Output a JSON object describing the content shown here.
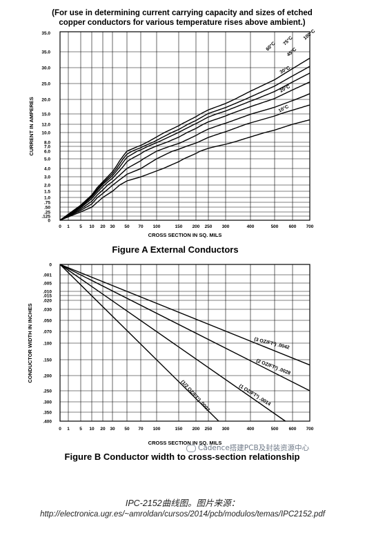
{
  "header": {
    "line1": "(For use in determining current carrying capacity and sizes of etched",
    "line2": "copper conductors for various temperature rises above ambient.)"
  },
  "chart_data": [
    {
      "type": "line",
      "title": "Figure A   External Conductors",
      "xlabel": "CROSS SECTION IN SQ. MILS",
      "ylabel": "CURRENT IN AMPERES",
      "xlim": [
        0,
        700
      ],
      "ylim": [
        0,
        35
      ],
      "grid": true,
      "x_ticks": [
        "0",
        "1",
        "5",
        "10",
        "20",
        "30",
        "50",
        "70",
        "100",
        "150",
        "200",
        "250",
        "300",
        "400",
        "500",
        "600",
        "700"
      ],
      "y_ticks": [
        "0",
        ".125",
        ".25",
        ".50",
        ".75",
        "1.0",
        "1.5",
        "2.0",
        "3.0",
        "4.0",
        "5.0",
        "6.0",
        "7.0",
        "8.0",
        "10.0",
        "12.0",
        "15.0",
        "20.0",
        "25.0",
        "30.0",
        "35.0"
      ],
      "series": [
        {
          "name": "10°C",
          "x": [
            0,
            50,
            100,
            200,
            300,
            400,
            500,
            600,
            700
          ],
          "y": [
            0,
            2.5,
            3.7,
            5.7,
            7.5,
            9.1,
            10.6,
            12.0,
            13.3
          ]
        },
        {
          "name": "20°C",
          "x": [
            0,
            50,
            100,
            200,
            300,
            400,
            500,
            600,
            700
          ],
          "y": [
            0,
            3.3,
            5.0,
            7.8,
            10.2,
            12.4,
            14.4,
            16.3,
            18.1
          ]
        },
        {
          "name": "30°C",
          "x": [
            0,
            50,
            100,
            200,
            300,
            400,
            500,
            600,
            700
          ],
          "y": [
            0,
            4.0,
            6.0,
            9.4,
            12.3,
            14.9,
            17.3,
            19.6,
            21.8
          ]
        },
        {
          "name": "45°C",
          "x": [
            0,
            50,
            100,
            200,
            300,
            400,
            500,
            600,
            700
          ],
          "y": [
            0,
            4.7,
            7.1,
            11.0,
            14.4,
            17.5,
            20.3,
            23.0,
            25.5
          ]
        },
        {
          "name": "60°C",
          "x": [
            0,
            50,
            100,
            200,
            300,
            400,
            500,
            600,
            700
          ],
          "y": [
            0,
            5.2,
            7.9,
            12.2,
            16.0,
            19.4,
            22.5,
            25.5,
            28.3
          ]
        },
        {
          "name": "75°C",
          "x": [
            0,
            50,
            100,
            200,
            300,
            400,
            500,
            600,
            700
          ],
          "y": [
            0,
            5.6,
            8.4,
            13.1,
            17.2,
            20.8,
            24.2,
            27.4,
            30.4
          ]
        },
        {
          "name": "100°C",
          "x": [
            0,
            50,
            100,
            200,
            300,
            400,
            500,
            600,
            700
          ],
          "y": [
            0,
            6.0,
            9.1,
            14.2,
            18.6,
            22.6,
            26.2,
            29.7,
            33.0
          ]
        }
      ],
      "labels": [
        "10°C",
        "20°C",
        "30°C",
        "45°C",
        "60°C",
        "75°C",
        "100°C"
      ]
    },
    {
      "type": "line",
      "title": "Figure B   Conductor width to cross-section relationship",
      "xlabel": "CROSS SECTION IN SQ. MILS",
      "ylabel": "CONDUCTOR WIDTH IN INCHES",
      "xlim": [
        0,
        700
      ],
      "ylim": [
        0,
        0.4
      ],
      "y_inverted": true,
      "grid": true,
      "x_ticks": [
        "0",
        "1",
        "5",
        "10",
        "20",
        "30",
        "50",
        "70",
        "100",
        "150",
        "200",
        "250",
        "300",
        "400",
        "500",
        "600",
        "700"
      ],
      "y_ticks": [
        "0",
        ".001",
        ".005",
        ".010",
        ".015",
        ".020",
        ".030",
        ".050",
        ".070",
        ".100",
        ".150",
        ".200",
        ".250",
        ".300",
        ".350",
        ".400"
      ],
      "series": [
        {
          "name": "(1/2 OZ/FT²) .0007",
          "x": [
            0,
            280
          ],
          "y": [
            0,
            0.4
          ]
        },
        {
          "name": "(1 OZ/FT²) .0014",
          "x": [
            0,
            560
          ],
          "y": [
            0,
            0.4
          ]
        },
        {
          "name": "(2 OZ/FT²) .0028",
          "x": [
            0,
            700
          ],
          "y": [
            0,
            0.25
          ]
        },
        {
          "name": "(3 OZ/FT²) .0042",
          "x": [
            0,
            700
          ],
          "y": [
            0,
            0.1667
          ]
        }
      ],
      "labels": [
        "(1/2 OZ/FT²) .0007",
        "(1 OZ/FT²) .0014",
        "(2 OZ/FT²) .0028",
        "(3 OZ/FT²) .0042"
      ]
    }
  ],
  "watermark": "Cadence搭建PCB及封装资源中心",
  "caption": {
    "line1": "IPC-2152曲线图。图片来源：",
    "line2": "http://electronica.ugr.es/~amroldan/cursos/2014/pcb/modulos/temas/IPC2152.pdf"
  }
}
